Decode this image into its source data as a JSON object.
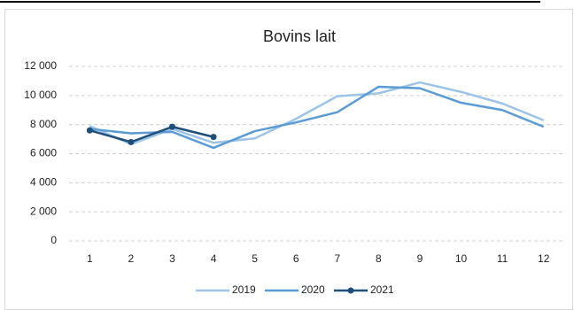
{
  "chart_data": {
    "type": "line",
    "title": "Bovins lait",
    "categories": [
      "1",
      "2",
      "3",
      "4",
      "5",
      "6",
      "7",
      "8",
      "9",
      "10",
      "11",
      "12"
    ],
    "series": [
      {
        "name": "2019",
        "color": "#9dc3e6",
        "values": [
          7900,
          6650,
          7700,
          6750,
          7050,
          8400,
          9950,
          10150,
          10900,
          10250,
          9450,
          8300
        ]
      },
      {
        "name": "2020",
        "color": "#5b9bd5",
        "values": [
          7700,
          7400,
          7500,
          6400,
          7550,
          8150,
          8850,
          10600,
          10500,
          9500,
          9000,
          7850
        ]
      },
      {
        "name": "2021",
        "color": "#1f4e79",
        "values": [
          7600,
          6800,
          7850,
          7150,
          null,
          null,
          null,
          null,
          null,
          null,
          null,
          null
        ],
        "markers": true
      }
    ],
    "ylim": [
      0,
      12000
    ],
    "yticks": [
      0,
      {
        "value": 2000,
        "label": "2 000"
      },
      {
        "value": 4000,
        "label": "4 000"
      },
      {
        "value": 6000,
        "label": "6 000"
      },
      {
        "value": 8000,
        "label": "8 000"
      },
      {
        "value": 10000,
        "label": "10 000"
      },
      {
        "value": 12000,
        "label": "12 000"
      }
    ],
    "grid": true,
    "legend": "bottom"
  }
}
